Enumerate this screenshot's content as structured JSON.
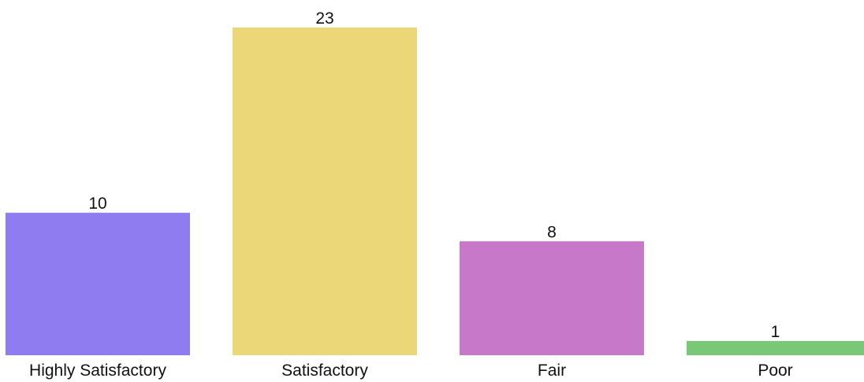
{
  "chart_data": {
    "type": "bar",
    "categories": [
      "Highly Satisfactory",
      "Satisfactory",
      "Fair",
      "Poor"
    ],
    "values": [
      10,
      23,
      8,
      1
    ],
    "colors": [
      "#8e7cf0",
      "#ebd778",
      "#c878c8",
      "#78c878"
    ]
  }
}
